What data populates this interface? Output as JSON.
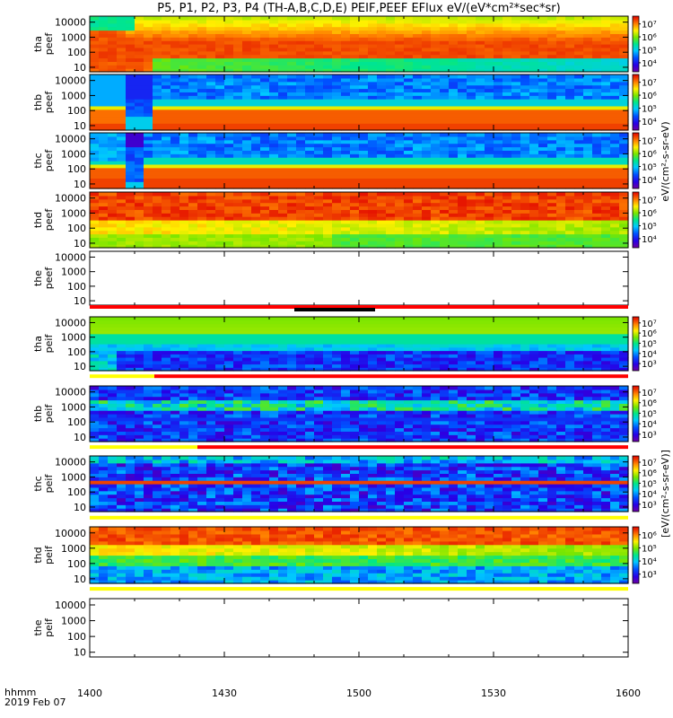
{
  "chart_data": {
    "type": "heatmap",
    "title": "P5, P1, P2, P3, P4 (TH-A,B,C,D,E) PEIF,PEEF EFlux eV/(eV*cm²*sec*sr)",
    "x_label_line1": "hhmm",
    "x_label_line2": "2019 Feb 07",
    "x_ticks": [
      "1400",
      "1430",
      "1500",
      "1530",
      "1600"
    ],
    "x_range": [
      "1400",
      "1600"
    ],
    "y_scale": "log",
    "y_range": [
      5,
      25000
    ],
    "y_ticks": [
      "10",
      "100",
      "1000",
      "10000"
    ],
    "colorbar_ticks_peef": [
      "10⁴",
      "10⁵",
      "10⁶",
      "10⁷"
    ],
    "colorbar_ticks_peif": [
      "10³",
      "10⁴",
      "10⁵",
      "10⁶",
      "10⁷"
    ],
    "colorbar_ticks_thd_peif": [
      "10³",
      "10⁴",
      "10⁵",
      "10⁶"
    ],
    "colorbar_label_peef": "eV/(cm²-s-sr-eV)",
    "colorbar_label_peif": "[eV/(cm²-s-sr-eV)]",
    "panels": [
      {
        "probe": "tha",
        "product": "peef",
        "has_data": true,
        "pattern": "tha_peef",
        "has_colorbar": true,
        "bar": null
      },
      {
        "probe": "thb",
        "product": "peef",
        "has_data": true,
        "pattern": "thb_peef",
        "has_colorbar": true,
        "bar": null
      },
      {
        "probe": "thc",
        "product": "peef",
        "has_data": true,
        "pattern": "thc_peef",
        "has_colorbar": true,
        "bar": null
      },
      {
        "probe": "thd",
        "product": "peef",
        "has_data": true,
        "pattern": "thd_peef",
        "has_colorbar": true,
        "bar": null
      },
      {
        "probe": "the",
        "product": "peef",
        "has_data": false,
        "pattern": "none",
        "has_colorbar": false,
        "bar": "the_peef"
      },
      {
        "probe": "tha",
        "product": "peif",
        "has_data": true,
        "pattern": "tha_peif",
        "has_colorbar": true,
        "bar": "tha_peif"
      },
      {
        "probe": "thb",
        "product": "peif",
        "has_data": true,
        "pattern": "thb_peif",
        "has_colorbar": true,
        "bar": "thb_peif"
      },
      {
        "probe": "thc",
        "product": "peif",
        "has_data": true,
        "pattern": "thc_peif",
        "has_colorbar": true,
        "bar": "thc_peif"
      },
      {
        "probe": "thd",
        "product": "peif",
        "has_data": true,
        "pattern": "thd_peif",
        "has_colorbar": true,
        "bar": "thd_peif"
      },
      {
        "probe": "the",
        "product": "peif",
        "has_data": false,
        "pattern": "none",
        "has_colorbar": false,
        "bar": null
      }
    ]
  }
}
